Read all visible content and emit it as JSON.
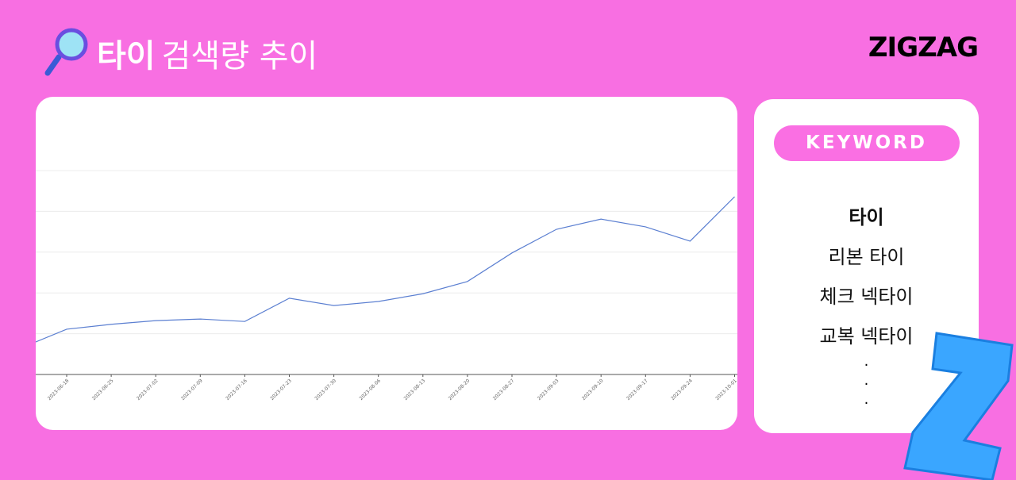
{
  "header": {
    "keyword": "타이",
    "title": "검색량 추이",
    "logo": "ZIGZAG"
  },
  "chart_data": {
    "type": "line",
    "categories": [
      null,
      "2023-06-18",
      "2023-06-25",
      "2023-07-02",
      "2023-07-09",
      "2023-07-16",
      "2023-07-23",
      "2023-07-30",
      "2023-08-06",
      "2023-08-13",
      "2023-08-20",
      "2023-08-27",
      "2023-09-03",
      "2023-09-10",
      "2023-09-17",
      "2023-09-24",
      "2023-10-01"
    ],
    "series": [
      {
        "name": "타이",
        "color": "#5b7fd1",
        "values": [
          0.66,
          1.11,
          1.23,
          1.32,
          1.36,
          1.3,
          1.87,
          1.69,
          1.79,
          1.98,
          2.28,
          2.98,
          3.56,
          3.81,
          3.62,
          3.27,
          4.36
        ]
      }
    ],
    "ylim": [
      0,
      5
    ],
    "yticks": [
      0,
      1,
      2,
      3,
      4,
      5
    ],
    "grid": true
  },
  "sidebar": {
    "heading": "KEYWORD",
    "keywords": [
      "타이",
      "리본 타이",
      "체크 넥타이",
      "교복 넥타이"
    ],
    "more": "·\n·\n·"
  }
}
